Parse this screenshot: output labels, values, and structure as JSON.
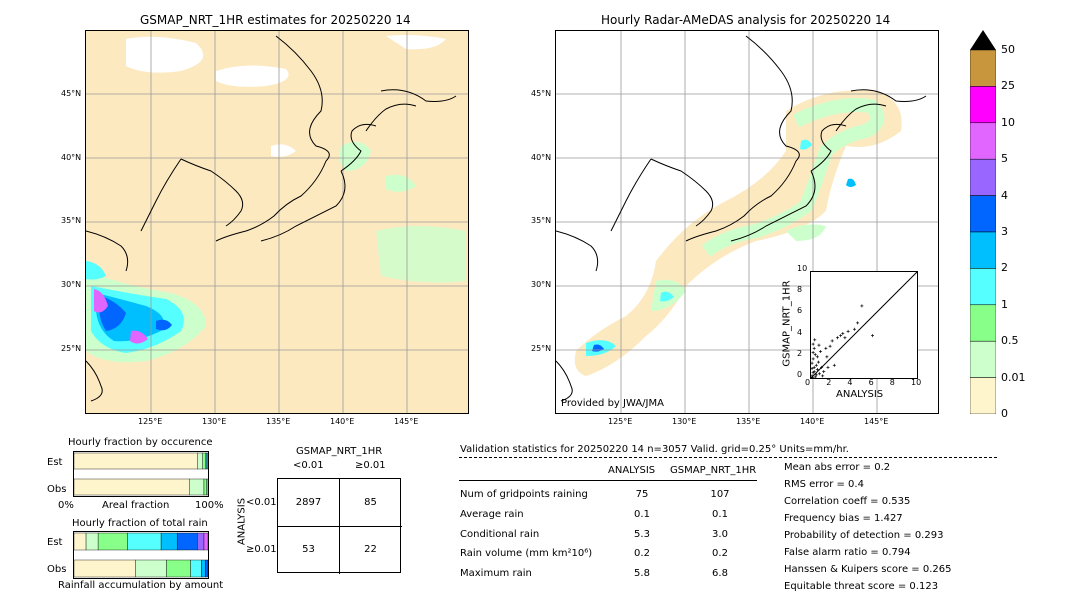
{
  "left_map": {
    "title": "GSMAP_NRT_1HR estimates for 20250220 14",
    "lat_labels": [
      "45°N",
      "40°N",
      "35°N",
      "30°N",
      "25°N"
    ],
    "lon_labels": [
      "125°E",
      "130°E",
      "135°E",
      "140°E",
      "145°E"
    ]
  },
  "right_map": {
    "title": "Hourly Radar-AMeDAS analysis for 20250220 14",
    "lat_labels": [
      "45°N",
      "40°N",
      "35°N",
      "30°N",
      "25°N"
    ],
    "lon_labels": [
      "125°E",
      "130°E",
      "135°E",
      "140°E",
      "145°E"
    ],
    "provider": "Provided by JWA/JMA"
  },
  "colorbar": {
    "labels": [
      "50",
      "25",
      "10",
      "5",
      "4",
      "3",
      "2",
      "1",
      "0.5",
      "0.01",
      "0"
    ],
    "colors": [
      "#c8963c",
      "#ff00ff",
      "#e066ff",
      "#9966ff",
      "#0066ff",
      "#00bfff",
      "#55ffff",
      "#88ff88",
      "#ccffcc",
      "#fff5cc"
    ]
  },
  "occurrence": {
    "title": "Hourly fraction by occurence",
    "row_est": "Est",
    "row_obs": "Obs",
    "axis_left": "0%",
    "axis_mid": "Areal fraction",
    "axis_right": "100%"
  },
  "total_rain": {
    "title": "Hourly fraction of total rain",
    "row_est": "Est",
    "row_obs": "Obs",
    "footer": "Rainfall accumulation by amount"
  },
  "contingency": {
    "col_title": "GSMAP_NRT_1HR",
    "col_lt": "<0.01",
    "col_ge": "≥0.01",
    "row_title": "ANALYSIS",
    "row_lt": "<0.01",
    "row_ge": "≥0.01",
    "a": "2897",
    "b": "85",
    "c": "53",
    "d": "22"
  },
  "validation": {
    "header": "Validation statistics for 20250220 14  n=3057 Valid. grid=0.25° Units=mm/hr.",
    "col_analysis": "ANALYSIS",
    "col_gsmap": "GSMAP_NRT_1HR",
    "rows": [
      {
        "label": "Num of gridpoints raining",
        "analysis": "75",
        "gsmap": "107"
      },
      {
        "label": "Average rain",
        "analysis": "0.1",
        "gsmap": "0.1"
      },
      {
        "label": "Conditional rain",
        "analysis": "5.3",
        "gsmap": "3.0"
      },
      {
        "label": "Rain volume (mm km²10⁶)",
        "analysis": "0.2",
        "gsmap": "0.2"
      },
      {
        "label": "Maximum rain",
        "analysis": "5.8",
        "gsmap": "6.8"
      }
    ],
    "scores": [
      "Mean abs error =    0.2",
      "RMS error =    0.4",
      "Correlation coeff =  0.535",
      "Frequency bias =  1.427",
      "Probability of detection =  0.293",
      "False alarm ratio =  0.794",
      "Hanssen & Kuipers score =  0.265",
      "Equitable threat score =  0.123"
    ]
  },
  "chart_data": [
    {
      "type": "scatter",
      "xlabel": "ANALYSIS",
      "ylabel": "GSMAP_NRT_1HR",
      "xlim": [
        0,
        10
      ],
      "ylim": [
        0,
        10
      ],
      "ticks": [
        "0",
        "2",
        "4",
        "6",
        "8",
        "10"
      ],
      "points": [
        [
          0.1,
          0.2
        ],
        [
          0.2,
          0.5
        ],
        [
          0.3,
          1.0
        ],
        [
          0.1,
          1.4
        ],
        [
          0.2,
          1.8
        ],
        [
          0.4,
          2.2
        ],
        [
          0.3,
          2.8
        ],
        [
          0.5,
          0.3
        ],
        [
          0.6,
          0.8
        ],
        [
          0.2,
          3.2
        ],
        [
          0.1,
          0.9
        ],
        [
          0.7,
          1.5
        ],
        [
          0.8,
          0.4
        ],
        [
          1.0,
          1.0
        ],
        [
          1.2,
          0.6
        ],
        [
          1.5,
          2.0
        ],
        [
          0.4,
          0.1
        ],
        [
          0.9,
          2.5
        ],
        [
          1.8,
          3.0
        ],
        [
          2.0,
          3.5
        ],
        [
          2.5,
          3.8
        ],
        [
          3.0,
          4.2
        ],
        [
          3.5,
          4.4
        ],
        [
          4.1,
          4.6
        ],
        [
          4.8,
          6.8
        ],
        [
          5.8,
          4.0
        ],
        [
          2.2,
          1.2
        ],
        [
          1.1,
          0.2
        ],
        [
          0.3,
          0.6
        ],
        [
          0.6,
          2.0
        ],
        [
          1.4,
          2.8
        ],
        [
          2.8,
          4.0
        ],
        [
          0.2,
          2.4
        ],
        [
          0.5,
          1.2
        ],
        [
          1.6,
          1.0
        ],
        [
          0.15,
          0.05
        ],
        [
          0.35,
          3.6
        ],
        [
          0.75,
          3.1
        ],
        [
          3.2,
          3.8
        ],
        [
          4.4,
          5.2
        ]
      ],
      "diagonal": true
    },
    {
      "type": "bar",
      "title": "Hourly fraction by occurence",
      "orientation": "horizontal-stacked",
      "series": [
        {
          "name": "Est",
          "values": [
            0.92,
            0.04,
            0.02,
            0.01,
            0.01
          ]
        },
        {
          "name": "Obs",
          "values": [
            0.86,
            0.11,
            0.02,
            0.01
          ]
        }
      ]
    },
    {
      "type": "bar",
      "title": "Hourly fraction of total rain",
      "orientation": "horizontal-stacked",
      "series": [
        {
          "name": "Est",
          "values": [
            0.09,
            0.09,
            0.22,
            0.25,
            0.12,
            0.15,
            0.05,
            0.03
          ]
        },
        {
          "name": "Obs",
          "values": [
            0.46,
            0.23,
            0.18,
            0.08,
            0.03,
            0.02
          ]
        }
      ]
    }
  ]
}
